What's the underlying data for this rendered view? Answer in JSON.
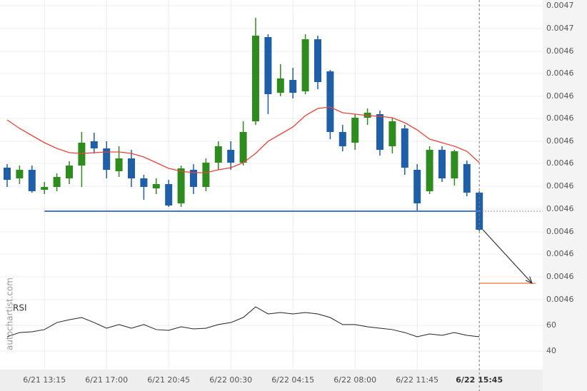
{
  "chart_data": {
    "type": "candlestick",
    "watermark": "autochartist.com",
    "categories": [
      null,
      null,
      null,
      "6/21 13:15",
      null,
      null,
      null,
      null,
      "6/21 17:00",
      null,
      null,
      null,
      null,
      "6/21 20:45",
      null,
      null,
      null,
      null,
      "6/22 00:30",
      null,
      null,
      null,
      null,
      "6/22 04:15",
      null,
      null,
      null,
      null,
      "6/22 08:00",
      null,
      null,
      null,
      null,
      "6/22 11:45",
      null,
      null,
      null,
      null,
      "6/22 15:45"
    ],
    "open": [
      0.004631,
      0.0046295,
      0.0046307,
      0.0046279,
      0.0046283,
      0.0046295,
      0.0046313,
      0.0046347,
      0.0046337,
      0.0046305,
      0.0046323,
      0.0046295,
      0.0046281,
      0.0046287,
      0.004626,
      0.0046307,
      0.0046283,
      0.0046317,
      0.0046335,
      0.0046317,
      0.0046375,
      0.0046493,
      0.0046415,
      0.0046433,
      0.0046417,
      0.004649,
      0.0046445,
      0.004636,
      0.0046345,
      0.004638,
      0.0046385,
      0.004634,
      0.0046365,
      0.0046307,
      0.0046277,
      0.0046335,
      0.0046295,
      0.0046315,
      0.0046275
    ],
    "high": [
      0.0046315,
      0.0046313,
      0.0046313,
      0.004629,
      0.0046302,
      0.0046319,
      0.004636,
      0.0046359,
      0.0046347,
      0.004634,
      0.0046335,
      0.00463,
      0.0046295,
      0.0046293,
      0.0046313,
      0.0046315,
      0.0046323,
      0.0046347,
      0.0046347,
      0.0046375,
      0.004652,
      0.0046497,
      0.0046455,
      0.004645,
      0.0046497,
      0.0046495,
      0.0046447,
      0.004637,
      0.0046385,
      0.0046393,
      0.004639,
      0.004638,
      0.004637,
      0.0046315,
      0.004634,
      0.004634,
      0.0046335,
      0.004632,
      0.0046277
    ],
    "low": [
      0.0046283,
      0.0046287,
      0.0046275,
      0.0046273,
      0.0046277,
      0.0046287,
      0.0046283,
      0.004633,
      0.0046295,
      0.0046297,
      0.0046283,
      0.0046265,
      0.0046273,
      0.0046255,
      0.0046255,
      0.0046273,
      0.0046277,
      0.0046307,
      0.0046307,
      0.0046313,
      0.004637,
      0.0046385,
      0.004641,
      0.0046407,
      0.0046413,
      0.004642,
      0.004635,
      0.0046333,
      0.0046335,
      0.004637,
      0.0046327,
      0.004633,
      0.00463,
      0.004625,
      0.0046273,
      0.004629,
      0.0046285,
      0.004627,
      0.0046221
    ],
    "close": [
      0.0046293,
      0.0046307,
      0.0046277,
      0.0046283,
      0.0046297,
      0.0046313,
      0.0046345,
      0.0046337,
      0.0046307,
      0.0046323,
      0.0046295,
      0.0046283,
      0.0046287,
      0.0046257,
      0.0046309,
      0.0046283,
      0.0046317,
      0.004634,
      0.0046317,
      0.004636,
      0.0046495,
      0.0046413,
      0.0046435,
      0.0046415,
      0.004649,
      0.004643,
      0.004636,
      0.004634,
      0.004638,
      0.0046387,
      0.0046335,
      0.0046375,
      0.004631,
      0.004626,
      0.0046335,
      0.0046295,
      0.0046333,
      0.0046275,
      0.0046223
    ],
    "up_color": "#2e8b1e",
    "down_color": "#1f5fa8",
    "moving_average": {
      "color": "#e8433a",
      "values": [
        0.0046377,
        0.0046365,
        0.0046355,
        0.0046345,
        0.0046337,
        0.0046331,
        0.004633,
        0.0046331,
        0.0046332,
        0.0046332,
        0.004633,
        0.0046325,
        0.0046317,
        0.0046309,
        0.0046305,
        0.0046303,
        0.0046303,
        0.0046307,
        0.004631,
        0.0046317,
        0.004633,
        0.0046347,
        0.0046357,
        0.0046367,
        0.0046383,
        0.0046393,
        0.0046395,
        0.0046387,
        0.0046385,
        0.0046383,
        0.0046382,
        0.004638,
        0.0046373,
        0.0046363,
        0.004635,
        0.0046345,
        0.004634,
        0.0046333,
        0.0046317
      ]
    },
    "support_level": 0.0046249,
    "support_color": "#4a74c9",
    "target_level": 0.0046148,
    "target_color": "#f08a5d",
    "ylim": [
      0.0046025,
      0.0046545
    ],
    "yticks": [
      {
        "value": 0.0046537,
        "label": "0.0047"
      },
      {
        "value": 0.0046505,
        "label": "0.0047"
      },
      {
        "value": 0.0046473,
        "label": "0.0046"
      },
      {
        "value": 0.0046442,
        "label": "0.0046"
      },
      {
        "value": 0.004641,
        "label": "0.0046"
      },
      {
        "value": 0.0046379,
        "label": "0.0046"
      },
      {
        "value": 0.0046347,
        "label": "0.0046"
      },
      {
        "value": 0.0046316,
        "label": "0.0046"
      },
      {
        "value": 0.0046284,
        "label": "0.0046"
      },
      {
        "value": 0.0046252,
        "label": "0.0046"
      },
      {
        "value": 0.004622,
        "label": "0.0046"
      },
      {
        "value": 0.0046189,
        "label": "0.0046"
      },
      {
        "value": 0.0046157,
        "label": "0.0046"
      },
      {
        "value": 0.0046125,
        "label": "0.0046"
      }
    ],
    "rsi": {
      "name": "RSI",
      "color": "#222",
      "axis": "y2",
      "values": [
        51.1,
        54.4,
        55,
        56.7,
        62.2,
        64.4,
        66.1,
        62.2,
        57.8,
        60.6,
        57.8,
        60.6,
        56.7,
        56.1,
        58.9,
        57.2,
        57.8,
        60.6,
        62.2,
        66.1,
        74.4,
        68.9,
        70,
        68.9,
        70,
        68.9,
        66.1,
        60.6,
        60.6,
        58.9,
        57.8,
        56.7,
        54.4,
        51.1,
        53.3,
        52.2,
        54.4,
        52.2,
        51.1
      ]
    },
    "y2lim": [
      30,
      80
    ],
    "y2ticks": [
      60,
      40
    ],
    "grid": true
  }
}
